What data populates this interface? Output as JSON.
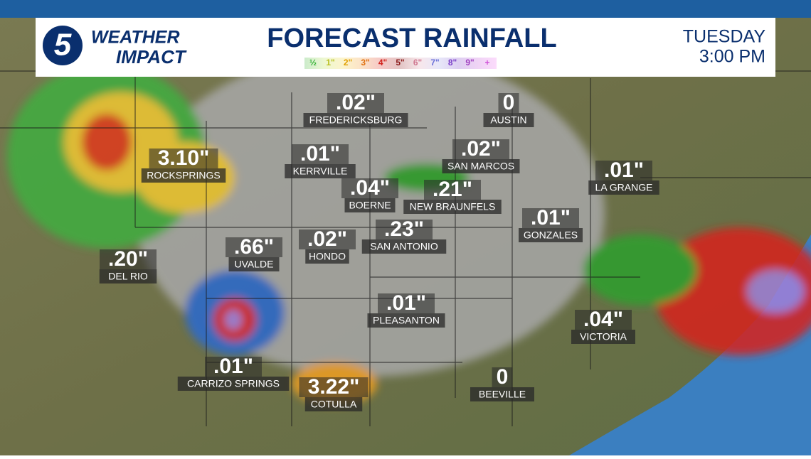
{
  "header": {
    "logo_number": "5",
    "brand_top": "WEATHER",
    "brand_bottom": "IMPACT",
    "title": "FORECAST RAINFALL",
    "legend": [
      "½",
      "1\"",
      "2\"",
      "3\"",
      "4\"",
      "5\"",
      "6\"",
      "7\"",
      "8\"",
      "9\"",
      "+"
    ],
    "day": "TUESDAY",
    "time": "3:00 PM"
  },
  "cities": [
    {
      "name": "FREDERICKSBURG",
      "amount": ".02\""
    },
    {
      "name": "AUSTIN",
      "amount": "0"
    },
    {
      "name": "ROCKSPRINGS",
      "amount": "3.10\""
    },
    {
      "name": "KERRVILLE",
      "amount": ".01\""
    },
    {
      "name": "SAN MARCOS",
      "amount": ".02\""
    },
    {
      "name": "LA GRANGE",
      "amount": ".01\""
    },
    {
      "name": "BOERNE",
      "amount": ".04\""
    },
    {
      "name": "NEW BRAUNFELS",
      "amount": ".21\""
    },
    {
      "name": "GONZALES",
      "amount": ".01\""
    },
    {
      "name": "UVALDE",
      "amount": ".66\""
    },
    {
      "name": "HONDO",
      "amount": ".02\""
    },
    {
      "name": "SAN ANTONIO",
      "amount": ".23\""
    },
    {
      "name": "DEL RIO",
      "amount": ".20\""
    },
    {
      "name": "PLEASANTON",
      "amount": ".01\""
    },
    {
      "name": "VICTORIA",
      "amount": ".04\""
    },
    {
      "name": "CARRIZO SPRINGS",
      "amount": ".01\""
    },
    {
      "name": "COTULLA",
      "amount": "3.22\""
    },
    {
      "name": "BEEVILLE",
      "amount": "0"
    }
  ]
}
